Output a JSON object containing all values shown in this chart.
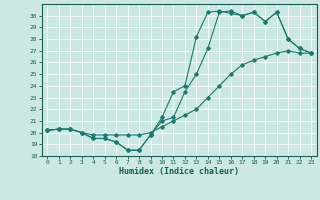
{
  "xlabel": "Humidex (Indice chaleur)",
  "bg_color": "#cce8e4",
  "line_color": "#1a7a6e",
  "xlim": [
    -0.5,
    23.5
  ],
  "ylim": [
    18,
    31
  ],
  "yticks": [
    18,
    19,
    20,
    21,
    22,
    23,
    24,
    25,
    26,
    27,
    28,
    29,
    30
  ],
  "xticks": [
    0,
    1,
    2,
    3,
    4,
    5,
    6,
    7,
    8,
    9,
    10,
    11,
    12,
    13,
    14,
    15,
    16,
    17,
    18,
    19,
    20,
    21,
    22,
    23
  ],
  "line1_x": [
    0,
    1,
    2,
    3,
    4,
    5,
    6,
    7,
    8,
    9,
    10,
    11,
    12,
    13,
    14,
    15,
    16,
    17,
    18,
    19,
    20,
    21,
    22,
    23
  ],
  "line1_y": [
    20.2,
    20.3,
    20.3,
    20.0,
    19.5,
    19.5,
    19.2,
    18.5,
    18.5,
    19.8,
    21.3,
    23.5,
    24.0,
    28.2,
    30.3,
    30.4,
    30.2,
    30.0,
    30.3,
    29.5,
    30.3,
    28.0,
    27.2,
    26.8
  ],
  "line2_x": [
    0,
    1,
    2,
    3,
    4,
    5,
    6,
    7,
    8,
    9,
    10,
    11,
    12,
    13,
    14,
    15,
    16,
    17,
    18,
    19,
    20,
    21,
    22,
    23
  ],
  "line2_y": [
    20.2,
    20.3,
    20.3,
    20.0,
    19.5,
    19.5,
    19.2,
    18.5,
    18.5,
    19.8,
    21.0,
    21.3,
    23.5,
    25.0,
    27.2,
    30.3,
    30.4,
    30.0,
    30.3,
    29.5,
    30.3,
    28.0,
    27.2,
    26.8
  ],
  "line3_x": [
    0,
    1,
    2,
    3,
    4,
    5,
    6,
    7,
    8,
    9,
    10,
    11,
    12,
    13,
    14,
    15,
    16,
    17,
    18,
    19,
    20,
    21,
    22,
    23
  ],
  "line3_y": [
    20.2,
    20.3,
    20.3,
    20.0,
    19.8,
    19.8,
    19.8,
    19.8,
    19.8,
    20.0,
    20.5,
    21.0,
    21.5,
    22.0,
    23.0,
    24.0,
    25.0,
    25.8,
    26.2,
    26.5,
    26.8,
    27.0,
    26.8,
    26.8
  ]
}
